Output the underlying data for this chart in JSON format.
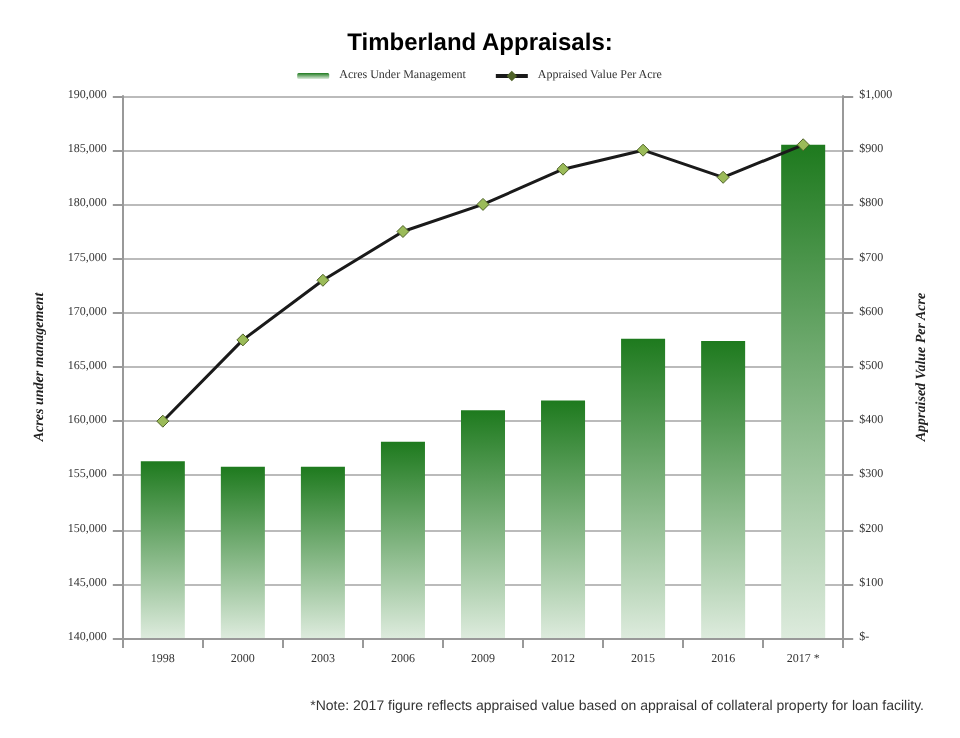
{
  "chart_data": {
    "type": "bar",
    "title": "Timberland Appraisals:",
    "ylabel": "Acres under management",
    "y2label": "Appraised Value Per Acre",
    "categories": [
      "1998",
      "2000",
      "2003",
      "2006",
      "2009",
      "2012",
      "2015",
      "2016",
      "2017 *"
    ],
    "series": [
      {
        "name": "Acres Under Management",
        "color": "#1e7a1e",
        "values": [
          156300,
          155800,
          155800,
          158100,
          161000,
          161900,
          167600,
          167400,
          185500
        ]
      },
      {
        "name": "Appraised Value Per Acre",
        "type": "line",
        "axis": "y2",
        "color": "#1a1a1a",
        "marker": "diamond",
        "values": [
          400,
          550,
          660,
          750,
          800,
          865,
          900,
          850,
          910
        ]
      }
    ],
    "ylim": [
      140000,
      190000
    ],
    "yticks": [
      {
        "value": 140000,
        "label": "140,000"
      },
      {
        "value": 145000,
        "label": "145,000"
      },
      {
        "value": 150000,
        "label": "150,000"
      },
      {
        "value": 155000,
        "label": "155,000"
      },
      {
        "value": 160000,
        "label": "160,000"
      },
      {
        "value": 165000,
        "label": "165,000"
      },
      {
        "value": 170000,
        "label": "170,000"
      },
      {
        "value": 175000,
        "label": "175,000"
      },
      {
        "value": 180000,
        "label": "180,000"
      },
      {
        "value": 185000,
        "label": "185,000"
      },
      {
        "value": 190000,
        "label": "190,000"
      }
    ],
    "y2lim": [
      0,
      1000
    ],
    "y2ticks": [
      {
        "value": 0,
        "label": "$-"
      },
      {
        "value": 100,
        "label": "$100"
      },
      {
        "value": 200,
        "label": "$200"
      },
      {
        "value": 300,
        "label": "$300"
      },
      {
        "value": 400,
        "label": "$400"
      },
      {
        "value": 500,
        "label": "$500"
      },
      {
        "value": 600,
        "label": "$600"
      },
      {
        "value": 700,
        "label": "$700"
      },
      {
        "value": 800,
        "label": "$800"
      },
      {
        "value": 900,
        "label": "$900"
      },
      {
        "value": 1000,
        "label": "$1,000"
      }
    ],
    "grid": "y",
    "legend": "top",
    "annotations": [
      "*Note: 2017 figure reflects appraised value based on appraisal of collateral property for loan facility."
    ]
  }
}
